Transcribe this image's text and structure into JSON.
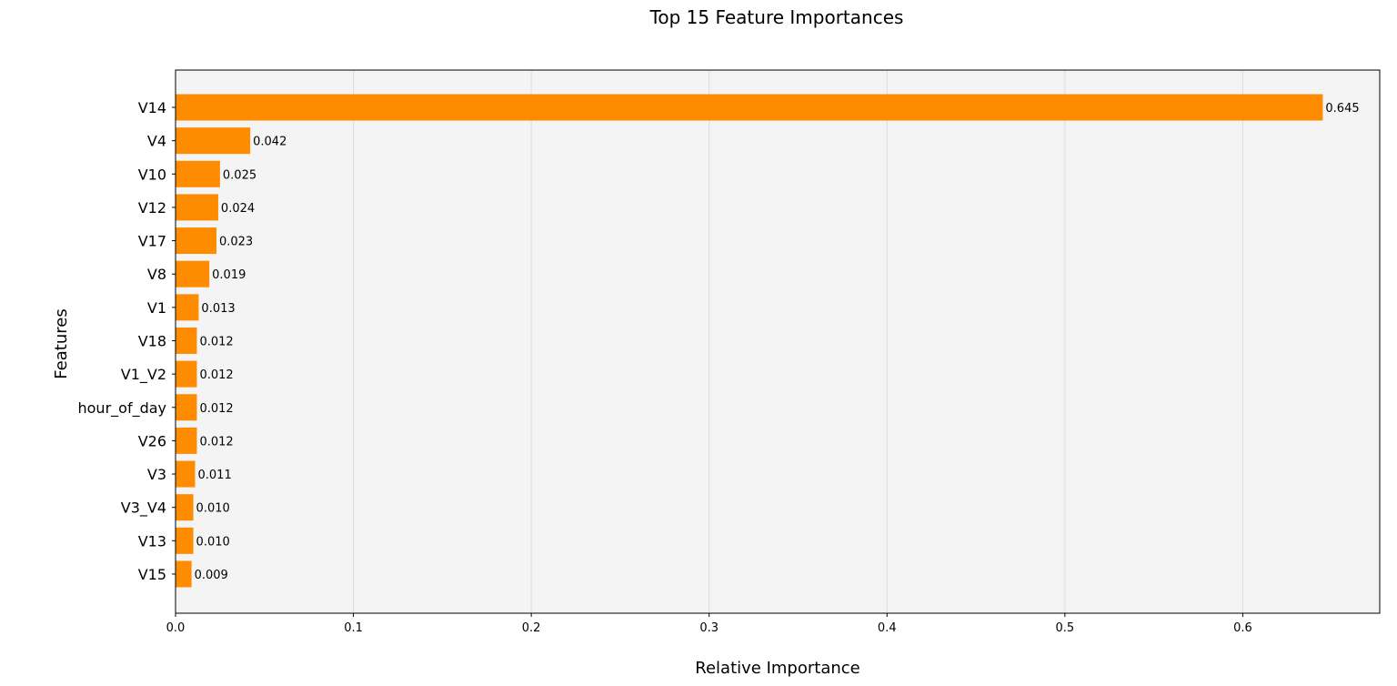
{
  "chart_data": {
    "type": "bar",
    "orientation": "horizontal",
    "title": "Top 15 Feature Importances",
    "xlabel": "Relative Importance",
    "ylabel": "Features",
    "categories": [
      "V14",
      "V4",
      "V10",
      "V12",
      "V17",
      "V8",
      "V1",
      "V18",
      "V1_V2",
      "hour_of_day",
      "V26",
      "V3",
      "V3_V4",
      "V13",
      "V15"
    ],
    "values": [
      0.645,
      0.042,
      0.025,
      0.024,
      0.023,
      0.019,
      0.013,
      0.012,
      0.012,
      0.012,
      0.012,
      0.011,
      0.01,
      0.01,
      0.009
    ],
    "value_labels": [
      "0.645",
      "0.042",
      "0.025",
      "0.024",
      "0.023",
      "0.019",
      "0.013",
      "0.012",
      "0.012",
      "0.012",
      "0.012",
      "0.011",
      "0.010",
      "0.010",
      "0.009"
    ],
    "xlim": [
      0,
      0.677
    ],
    "xticks": [
      0,
      0.1,
      0.2,
      0.3,
      0.4,
      0.5,
      0.6
    ],
    "xtick_labels": [
      "0.0",
      "0.1",
      "0.2",
      "0.3",
      "0.4",
      "0.5",
      "0.6"
    ],
    "grid": "vertical",
    "legend": "none",
    "colors": {
      "bar": "#ff8c00",
      "plot_background": "#f4f4f4",
      "grid": "#dcdcdc",
      "axis": "#000000"
    }
  }
}
